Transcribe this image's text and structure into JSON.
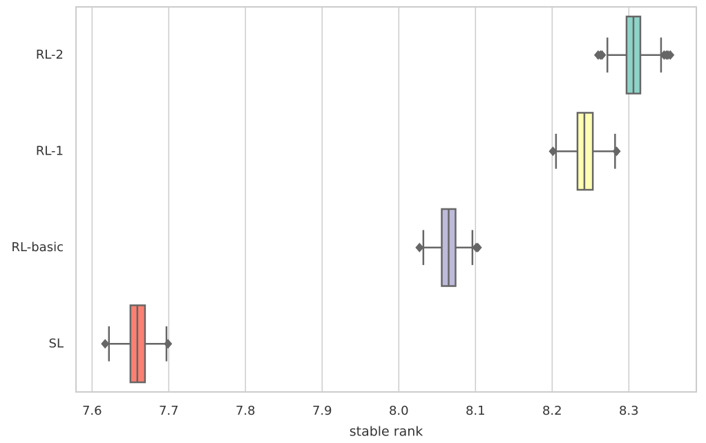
{
  "chart_data": {
    "type": "boxplot",
    "orientation": "horizontal",
    "xlabel": "stable rank",
    "xlim": [
      7.579,
      8.388
    ],
    "xticks": [
      7.6,
      7.7,
      7.8,
      7.9,
      {
        "value": 8,
        "label": "8.0"
      },
      8.1,
      8.2,
      8.3
    ],
    "grid": true,
    "boxes": [
      {
        "name": "RL-2",
        "color": "#8dd3c7",
        "whislo": 8.272,
        "q1": 8.297,
        "med": 8.306,
        "q3": 8.315,
        "whishi": 8.342,
        "fliers": [
          8.26,
          8.263,
          8.265,
          8.346,
          8.349,
          8.351,
          8.354
        ]
      },
      {
        "name": "RL-1",
        "color": "#ffffb3",
        "whislo": 8.205,
        "q1": 8.233,
        "med": 8.242,
        "q3": 8.253,
        "whishi": 8.282,
        "fliers": [
          8.201,
          8.284
        ]
      },
      {
        "name": "RL-basic",
        "color": "#bebada",
        "whislo": 8.032,
        "q1": 8.056,
        "med": 8.065,
        "q3": 8.074,
        "whishi": 8.096,
        "fliers": [
          8.027,
          8.101,
          8.103
        ]
      },
      {
        "name": "SL",
        "color": "#fb8072",
        "whislo": 7.622,
        "q1": 7.65,
        "med": 7.659,
        "q3": 7.669,
        "whishi": 7.697,
        "fliers": [
          7.617,
          7.699
        ]
      }
    ]
  }
}
